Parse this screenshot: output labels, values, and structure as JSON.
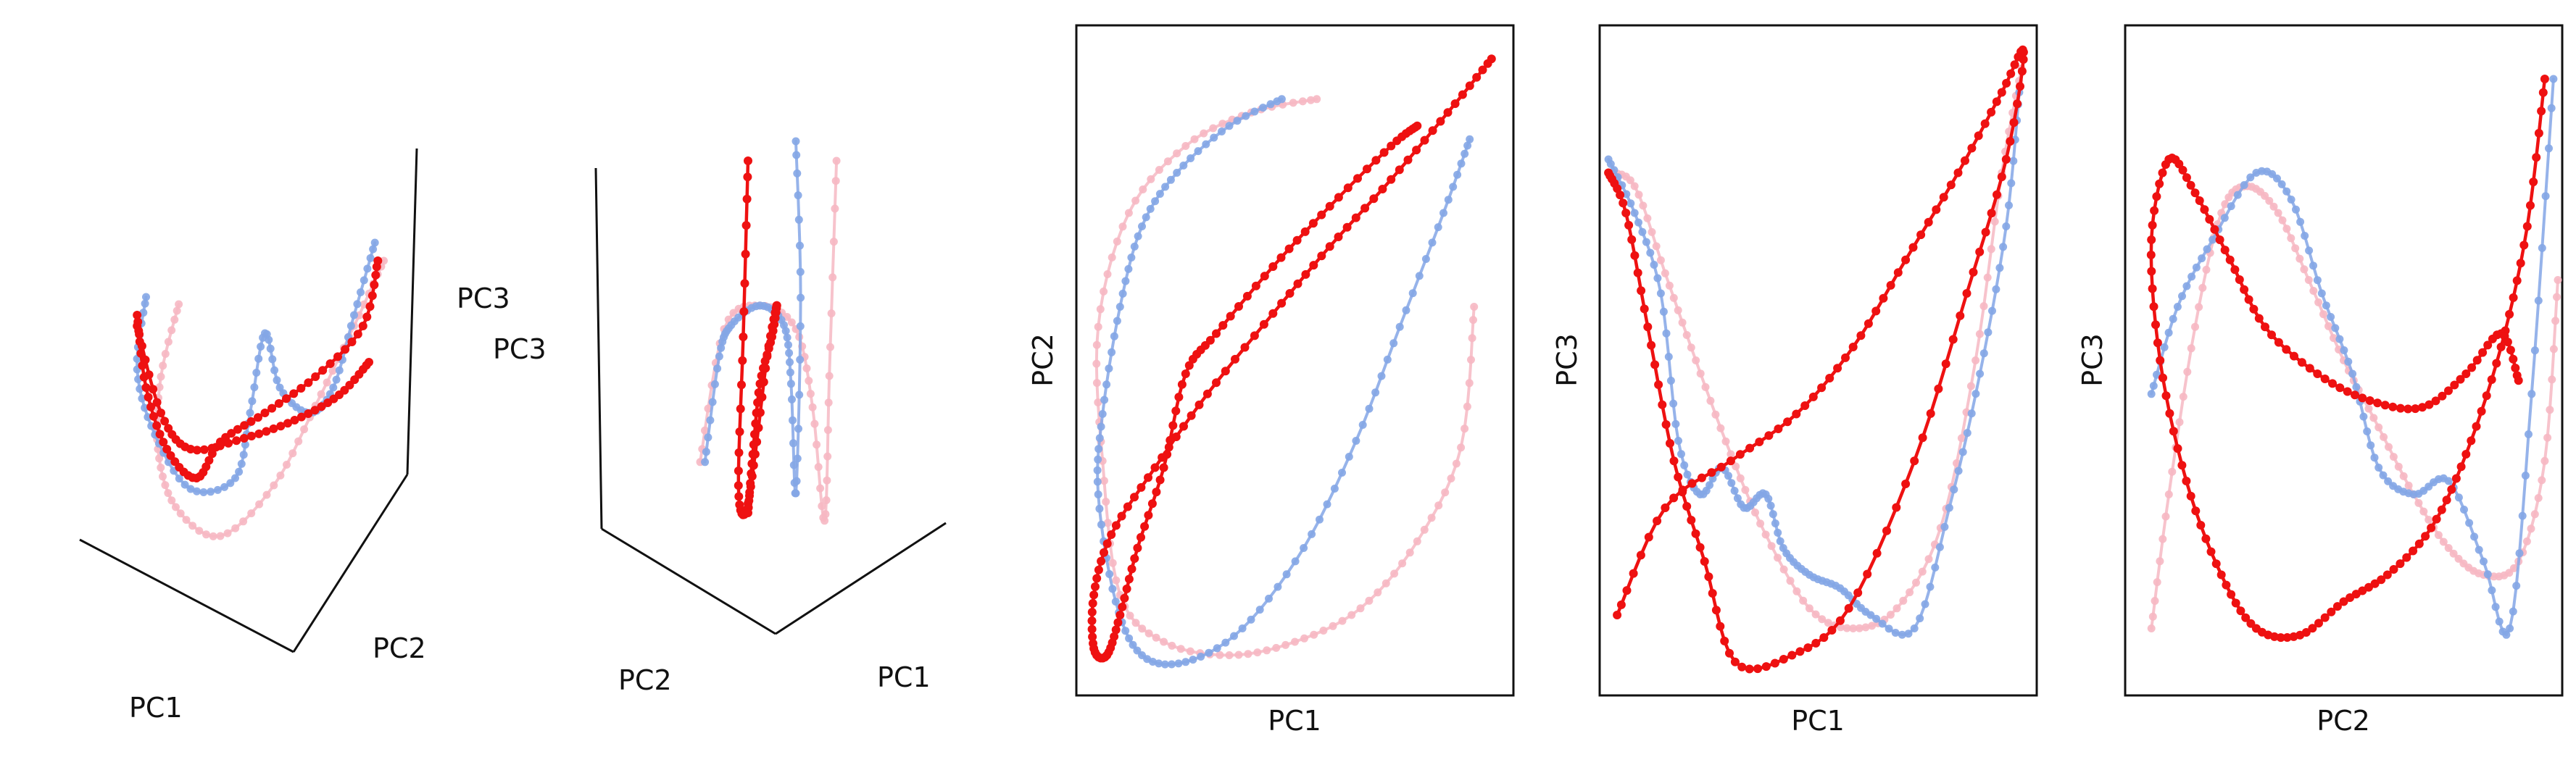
{
  "chart_data": [
    {
      "type": "line",
      "projection": "3d",
      "axis_labels": [
        "PC1",
        "PC2",
        "PC3"
      ],
      "series": [
        {
          "color": "#f6b8c3",
          "points_2d": [
            [
              0.26,
              0.32
            ],
            [
              0.2,
              0.52
            ],
            [
              0.19,
              0.72
            ],
            [
              0.25,
              0.88
            ],
            [
              0.4,
              0.96
            ],
            [
              0.58,
              0.82
            ],
            [
              0.72,
              0.6
            ],
            [
              0.85,
              0.38
            ],
            [
              0.95,
              0.2
            ]
          ]
        },
        {
          "color": "#84a6e6",
          "points_2d": [
            [
              0.15,
              0.3
            ],
            [
              0.12,
              0.5
            ],
            [
              0.18,
              0.68
            ],
            [
              0.3,
              0.83
            ],
            [
              0.45,
              0.8
            ],
            [
              0.5,
              0.62
            ],
            [
              0.55,
              0.4
            ],
            [
              0.6,
              0.55
            ],
            [
              0.7,
              0.62
            ],
            [
              0.78,
              0.55
            ],
            [
              0.85,
              0.35
            ],
            [
              0.92,
              0.15
            ]
          ]
        },
        {
          "color": "#ee1111",
          "points_2d": [
            [
              0.12,
              0.35
            ],
            [
              0.15,
              0.55
            ],
            [
              0.22,
              0.72
            ],
            [
              0.32,
              0.8
            ],
            [
              0.4,
              0.7
            ],
            [
              0.55,
              0.62
            ],
            [
              0.72,
              0.52
            ],
            [
              0.88,
              0.38
            ],
            [
              0.93,
              0.2
            ]
          ]
        },
        {
          "color": "#ee1111",
          "points_2d": [
            [
              0.12,
              0.38
            ],
            [
              0.2,
              0.62
            ],
            [
              0.3,
              0.72
            ],
            [
              0.48,
              0.69
            ],
            [
              0.65,
              0.64
            ],
            [
              0.8,
              0.57
            ],
            [
              0.9,
              0.48
            ]
          ]
        }
      ]
    },
    {
      "type": "line",
      "projection": "3d",
      "axis_labels": [
        "PC2",
        "PC1",
        "PC3"
      ],
      "series": [
        {
          "color": "#f6b8c3",
          "points_2d": [
            [
              0.2,
              0.82
            ],
            [
              0.3,
              0.48
            ],
            [
              0.45,
              0.42
            ],
            [
              0.6,
              0.48
            ],
            [
              0.67,
              0.68
            ],
            [
              0.72,
              0.97
            ],
            [
              0.74,
              0.6
            ],
            [
              0.77,
              0.05
            ]
          ]
        },
        {
          "color": "#84a6e6",
          "points_2d": [
            [
              0.22,
              0.82
            ],
            [
              0.28,
              0.55
            ],
            [
              0.33,
              0.47
            ],
            [
              0.45,
              0.42
            ],
            [
              0.55,
              0.47
            ],
            [
              0.58,
              0.62
            ],
            [
              0.6,
              0.9
            ],
            [
              0.62,
              0.4
            ],
            [
              0.6,
              0.0
            ]
          ]
        },
        {
          "color": "#ee1111",
          "points_2d": [
            [
              0.4,
              0.05
            ],
            [
              0.38,
              0.5
            ],
            [
              0.36,
              0.88
            ],
            [
              0.39,
              0.95
            ],
            [
              0.43,
              0.8
            ],
            [
              0.48,
              0.55
            ],
            [
              0.52,
              0.42
            ],
            [
              0.5,
              0.5
            ],
            [
              0.45,
              0.62
            ],
            [
              0.42,
              0.8
            ],
            [
              0.4,
              0.95
            ]
          ]
        }
      ]
    },
    {
      "type": "line",
      "xlabel": "PC1",
      "ylabel": "PC2",
      "xlim": [
        0,
        1
      ],
      "ylim": [
        0,
        1
      ],
      "ticks": "none",
      "series": [
        {
          "color": "#f6b8c3",
          "x": [
            0.55,
            0.4,
            0.25,
            0.12,
            0.05,
            0.06,
            0.1,
            0.2,
            0.35,
            0.5,
            0.65,
            0.78,
            0.88,
            0.91
          ],
          "y": [
            0.89,
            0.87,
            0.82,
            0.72,
            0.55,
            0.35,
            0.15,
            0.08,
            0.06,
            0.08,
            0.13,
            0.23,
            0.37,
            0.58
          ]
        },
        {
          "color": "#84a6e6",
          "x": [
            0.47,
            0.35,
            0.23,
            0.15,
            0.1,
            0.06,
            0.05,
            0.09,
            0.15,
            0.25,
            0.38,
            0.52,
            0.64,
            0.74,
            0.84,
            0.9
          ],
          "y": [
            0.89,
            0.85,
            0.78,
            0.7,
            0.58,
            0.42,
            0.3,
            0.14,
            0.06,
            0.05,
            0.1,
            0.22,
            0.38,
            0.55,
            0.72,
            0.83
          ]
        },
        {
          "color": "#ee1111",
          "x": [
            0.95,
            0.85,
            0.72,
            0.58,
            0.45,
            0.3,
            0.18,
            0.08,
            0.04,
            0.04,
            0.07,
            0.1,
            0.14,
            0.2,
            0.25,
            0.32,
            0.45,
            0.58,
            0.72,
            0.78
          ],
          "y": [
            0.95,
            0.87,
            0.77,
            0.67,
            0.57,
            0.45,
            0.34,
            0.24,
            0.15,
            0.07,
            0.06,
            0.12,
            0.22,
            0.34,
            0.48,
            0.54,
            0.64,
            0.73,
            0.82,
            0.85
          ]
        }
      ]
    },
    {
      "type": "line",
      "xlabel": "PC1",
      "ylabel": "PC3",
      "xlim": [
        0,
        1
      ],
      "ylim": [
        0,
        1
      ],
      "ticks": "none",
      "series": [
        {
          "color": "#f6b8c3",
          "x": [
            0.02,
            0.08,
            0.15,
            0.22,
            0.3,
            0.38,
            0.48,
            0.58,
            0.68,
            0.78,
            0.86,
            0.92,
            0.97
          ],
          "y": [
            0.78,
            0.76,
            0.63,
            0.5,
            0.36,
            0.24,
            0.13,
            0.1,
            0.13,
            0.25,
            0.5,
            0.78,
            0.95
          ]
        },
        {
          "color": "#84a6e6",
          "x": [
            0.02,
            0.08,
            0.14,
            0.18,
            0.23,
            0.28,
            0.33,
            0.38,
            0.42,
            0.48,
            0.55,
            0.62,
            0.72,
            0.8,
            0.87,
            0.93,
            0.96
          ],
          "y": [
            0.8,
            0.72,
            0.6,
            0.38,
            0.3,
            0.34,
            0.28,
            0.3,
            0.22,
            0.18,
            0.16,
            0.12,
            0.1,
            0.28,
            0.48,
            0.7,
            0.9
          ]
        },
        {
          "color": "#ee1111",
          "x": [
            0.02,
            0.06,
            0.11,
            0.17,
            0.24,
            0.31,
            0.44,
            0.57,
            0.72,
            0.84,
            0.93,
            0.97,
            0.92,
            0.82,
            0.7,
            0.58,
            0.45,
            0.3,
            0.15,
            0.04
          ],
          "y": [
            0.78,
            0.72,
            0.55,
            0.35,
            0.2,
            0.05,
            0.06,
            0.13,
            0.35,
            0.6,
            0.8,
            0.96,
            0.9,
            0.78,
            0.65,
            0.52,
            0.42,
            0.35,
            0.28,
            0.12
          ]
        }
      ]
    },
    {
      "type": "line",
      "xlabel": "PC2",
      "ylabel": "PC3",
      "xlim": [
        0,
        1
      ],
      "ylim": [
        0,
        1
      ],
      "ticks": "none",
      "series": [
        {
          "color": "#f6b8c3",
          "x": [
            0.06,
            0.1,
            0.16,
            0.22,
            0.28,
            0.35,
            0.42,
            0.5,
            0.58,
            0.66,
            0.74,
            0.82,
            0.9,
            0.96,
            0.99
          ],
          "y": [
            0.1,
            0.3,
            0.55,
            0.72,
            0.76,
            0.72,
            0.62,
            0.5,
            0.4,
            0.3,
            0.22,
            0.18,
            0.2,
            0.35,
            0.62
          ]
        },
        {
          "color": "#84a6e6",
          "x": [
            0.06,
            0.12,
            0.2,
            0.3,
            0.38,
            0.45,
            0.52,
            0.58,
            0.66,
            0.74,
            0.82,
            0.88,
            0.93,
            0.98
          ],
          "y": [
            0.45,
            0.58,
            0.68,
            0.78,
            0.74,
            0.6,
            0.48,
            0.34,
            0.3,
            0.32,
            0.2,
            0.1,
            0.45,
            0.92
          ]
        },
        {
          "color": "#ee1111",
          "x": [
            0.96,
            0.92,
            0.86,
            0.78,
            0.7,
            0.6,
            0.5,
            0.4,
            0.3,
            0.22,
            0.14,
            0.08,
            0.06,
            0.1,
            0.16,
            0.24,
            0.32,
            0.44,
            0.56,
            0.68,
            0.78,
            0.86,
            0.9
          ],
          "y": [
            0.92,
            0.7,
            0.52,
            0.36,
            0.25,
            0.18,
            0.14,
            0.09,
            0.1,
            0.18,
            0.32,
            0.5,
            0.68,
            0.8,
            0.75,
            0.65,
            0.55,
            0.48,
            0.44,
            0.43,
            0.48,
            0.54,
            0.47
          ]
        }
      ]
    }
  ]
}
